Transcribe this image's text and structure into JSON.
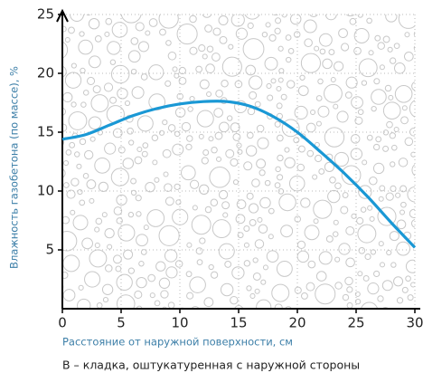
{
  "chart_data": {
    "type": "line",
    "xlabel": "Расстояние от наружной поверхности, см",
    "ylabel": "Влажность газобетона (по массе), %",
    "caption": "В – кладка, оштукатуренная с наружной стороны",
    "x": [
      0,
      2,
      4,
      6,
      8,
      10,
      12,
      14,
      16,
      18,
      20,
      22,
      24,
      26,
      28,
      30
    ],
    "values": [
      14.4,
      14.8,
      15.6,
      16.4,
      17.0,
      17.4,
      17.6,
      17.6,
      17.2,
      16.3,
      15.0,
      13.3,
      11.5,
      9.5,
      7.3,
      5.2
    ],
    "color": "#1a98d5",
    "xlim": [
      0,
      30
    ],
    "ylim": [
      0,
      25
    ],
    "xticks": [
      0,
      5,
      10,
      15,
      20,
      25,
      30
    ],
    "yticks": [
      5,
      10,
      15,
      20,
      25
    ],
    "grid": true
  }
}
